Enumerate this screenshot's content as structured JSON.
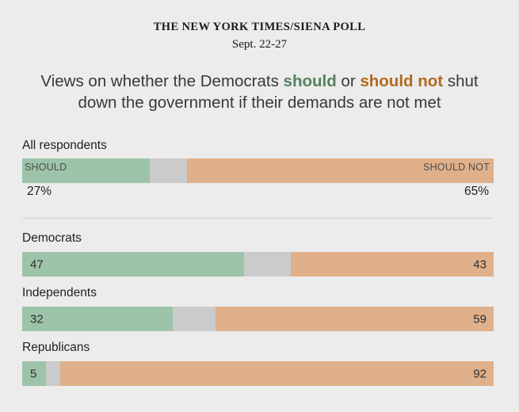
{
  "header": {
    "kicker": "THE NEW YORK TIMES/SIENA POLL",
    "date": "Sept. 22-27"
  },
  "title": {
    "line1_pre": "Views on whether the Democrats ",
    "should_word": "should",
    "line1_mid": " or ",
    "should_not_word": "should not",
    "line1_post": " shut",
    "line2": "down the government if their demands are not met"
  },
  "colors": {
    "background": "#ececec",
    "should_green": "#9dc3a8",
    "should_not_tan": "#dfb08a",
    "no_answer_gray": "#cbcbcb",
    "title_should_green": "#55805f",
    "title_should_not_orange": "#b06a1e",
    "divider": "#cccccc"
  },
  "chart_data": {
    "type": "bar",
    "orientation": "horizontal-stacked",
    "title": "Views on whether the Democrats should or should not shut down the government if their demands are not met",
    "categories": [
      "All respondents",
      "Democrats",
      "Independents",
      "Republicans"
    ],
    "series": [
      {
        "key": "should",
        "name": "Should",
        "color": "#9dc3a8",
        "values": [
          27,
          47,
          32,
          5
        ]
      },
      {
        "key": "none",
        "name": "Unlabeled remainder (gray)",
        "color": "#cbcbcb",
        "values": [
          8,
          10,
          9,
          3
        ]
      },
      {
        "key": "should_not",
        "name": "Should not",
        "color": "#dfb08a",
        "values": [
          65,
          43,
          59,
          92
        ]
      }
    ],
    "axis_range_percent": [
      0,
      100
    ],
    "legend_position": "in-bar (first row)",
    "grid": false,
    "first_row": {
      "left_cap": "SHOULD",
      "right_cap": "SHOULD NOT",
      "left_pct": "27%",
      "right_pct": "65%"
    },
    "in_bar_labels": [
      {
        "left": "47",
        "right": "43"
      },
      {
        "left": "32",
        "right": "59"
      },
      {
        "left": "5",
        "right": "92"
      }
    ]
  }
}
